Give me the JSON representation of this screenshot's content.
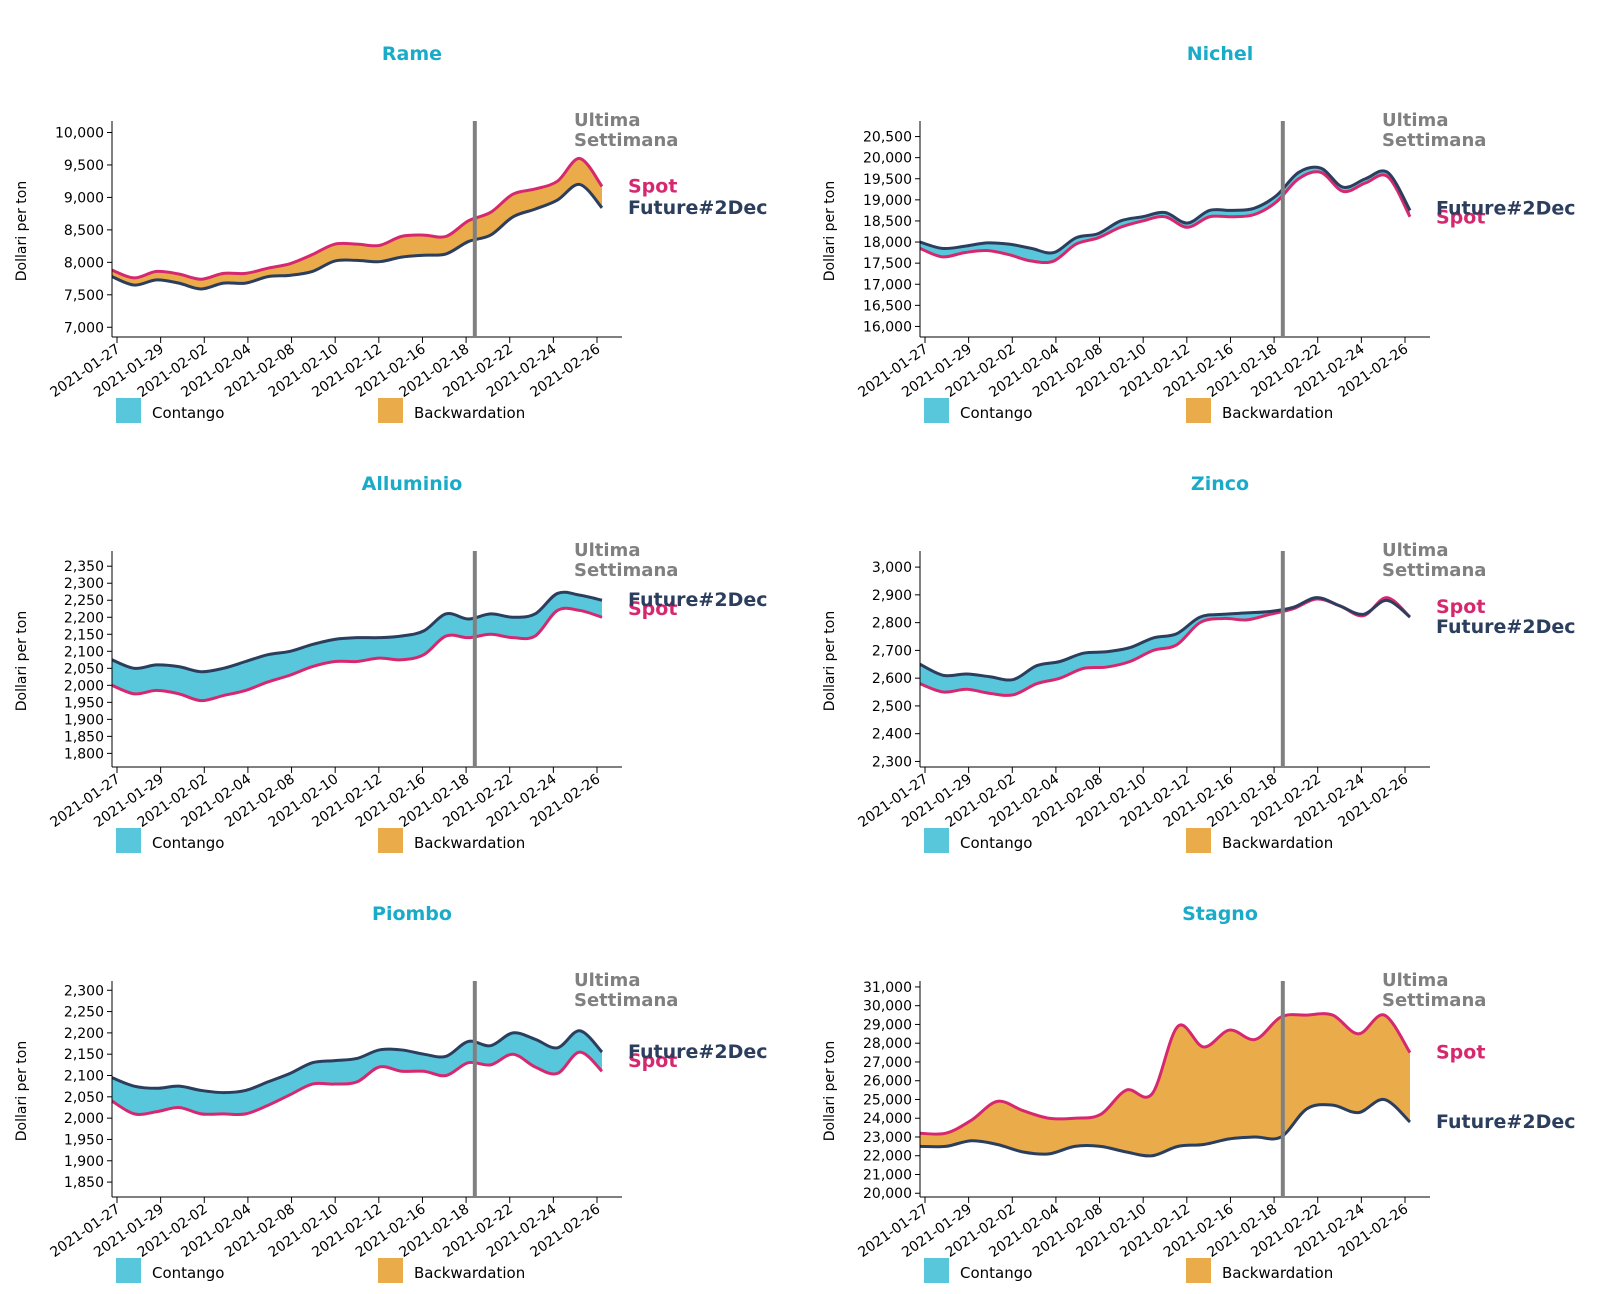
{
  "colors": {
    "title": "#1aabc8",
    "spot": "#d6286f",
    "future": "#2c3e5e",
    "contango": "#58c7dc",
    "backwardation": "#eaab4a",
    "week_line": "#808080",
    "week_label": "#808080"
  },
  "labels": {
    "ylabel": "Dollari per ton",
    "last_week": [
      "Ultima",
      "Settimana"
    ],
    "spot": "Spot",
    "future": "Future#2Dec",
    "legend": [
      "Contango",
      "Backwardation"
    ]
  },
  "x_ticks": [
    "2021-01-27",
    "2021-01-29",
    "2021-02-02",
    "2021-02-04",
    "2021-02-08",
    "2021-02-10",
    "2021-02-12",
    "2021-02-16",
    "2021-02-18",
    "2021-02-22",
    "2021-02-24",
    "2021-02-26"
  ],
  "last_week_index": 8.2,
  "chart_data": [
    {
      "type": "area",
      "title": "Rame",
      "ylim": [
        6850,
        10100
      ],
      "yticks": [
        7000,
        7500,
        8000,
        8500,
        9000,
        9500,
        10000
      ],
      "spot": [
        7880,
        7760,
        7860,
        7820,
        7740,
        7830,
        7830,
        7910,
        7980,
        8120,
        8280,
        8280,
        8260,
        8400,
        8420,
        8400,
        8640,
        8770,
        9050,
        9130,
        9250,
        9600,
        9170
      ],
      "future": [
        7780,
        7650,
        7730,
        7680,
        7590,
        7680,
        7680,
        7780,
        7800,
        7860,
        8020,
        8030,
        8010,
        8080,
        8110,
        8130,
        8320,
        8420,
        8700,
        8820,
        8960,
        9200,
        8840
      ]
    },
    {
      "type": "area",
      "title": "Nichel",
      "ylim": [
        15750,
        20750
      ],
      "yticks": [
        16000,
        16500,
        17000,
        17500,
        18000,
        18500,
        19000,
        19500,
        20000,
        20500
      ],
      "spot": [
        17850,
        17650,
        17750,
        17800,
        17700,
        17550,
        17550,
        17950,
        18100,
        18350,
        18500,
        18600,
        18350,
        18600,
        18600,
        18650,
        18950,
        19500,
        19650,
        19200,
        19400,
        19550,
        18600
      ],
      "future": [
        18000,
        17850,
        17900,
        17980,
        17950,
        17850,
        17750,
        18100,
        18200,
        18500,
        18600,
        18700,
        18450,
        18750,
        18750,
        18800,
        19100,
        19650,
        19750,
        19300,
        19500,
        19650,
        18750
      ]
    },
    {
      "type": "area",
      "title": "Alluminio",
      "ylim": [
        1760,
        2380
      ],
      "yticks": [
        1800,
        1850,
        1900,
        1950,
        2000,
        2050,
        2100,
        2150,
        2200,
        2250,
        2300,
        2350
      ],
      "spot": [
        2000,
        1975,
        1985,
        1975,
        1955,
        1970,
        1985,
        2010,
        2030,
        2055,
        2070,
        2070,
        2080,
        2075,
        2090,
        2145,
        2140,
        2150,
        2140,
        2145,
        2220,
        2220,
        2200
      ],
      "future": [
        2075,
        2050,
        2060,
        2055,
        2040,
        2050,
        2070,
        2090,
        2100,
        2120,
        2135,
        2140,
        2140,
        2145,
        2160,
        2210,
        2195,
        2210,
        2200,
        2210,
        2270,
        2265,
        2250
      ]
    },
    {
      "type": "area",
      "title": "Zinco",
      "ylim": [
        2280,
        3040
      ],
      "yticks": [
        2300,
        2400,
        2500,
        2600,
        2700,
        2800,
        2900,
        3000
      ],
      "spot": [
        2580,
        2550,
        2560,
        2545,
        2540,
        2580,
        2600,
        2635,
        2640,
        2660,
        2700,
        2720,
        2800,
        2815,
        2810,
        2830,
        2850,
        2885,
        2860,
        2825,
        2890,
        2820
      ],
      "future": [
        2650,
        2610,
        2615,
        2605,
        2595,
        2645,
        2660,
        2690,
        2695,
        2710,
        2745,
        2760,
        2820,
        2830,
        2835,
        2840,
        2855,
        2890,
        2860,
        2830,
        2880,
        2820
      ]
    },
    {
      "type": "area",
      "title": "Piombo",
      "ylim": [
        1815,
        2310
      ],
      "yticks": [
        1850,
        1900,
        1950,
        2000,
        2050,
        2100,
        2150,
        2200,
        2250,
        2300
      ],
      "spot": [
        2040,
        2010,
        2015,
        2025,
        2010,
        2010,
        2010,
        2030,
        2055,
        2080,
        2080,
        2085,
        2120,
        2110,
        2110,
        2100,
        2130,
        2125,
        2150,
        2120,
        2105,
        2155,
        2110
      ],
      "future": [
        2095,
        2075,
        2070,
        2075,
        2065,
        2060,
        2065,
        2085,
        2105,
        2130,
        2135,
        2140,
        2160,
        2160,
        2150,
        2145,
        2180,
        2170,
        2200,
        2185,
        2165,
        2205,
        2155
      ]
    },
    {
      "type": "area",
      "title": "Stagno",
      "ylim": [
        19800,
        31050
      ],
      "yticks": [
        20000,
        21000,
        22000,
        23000,
        24000,
        25000,
        26000,
        27000,
        28000,
        29000,
        30000,
        31000
      ],
      "spot": [
        23200,
        23200,
        23900,
        24900,
        24400,
        24000,
        24000,
        24200,
        25500,
        25300,
        28900,
        27800,
        28700,
        28200,
        29400,
        29500,
        29500,
        28500,
        29500,
        27500
      ],
      "future": [
        22500,
        22500,
        22800,
        22600,
        22200,
        22100,
        22500,
        22500,
        22200,
        22000,
        22500,
        22600,
        22900,
        23000,
        23000,
        24500,
        24700,
        24300,
        25000,
        23800
      ]
    }
  ]
}
